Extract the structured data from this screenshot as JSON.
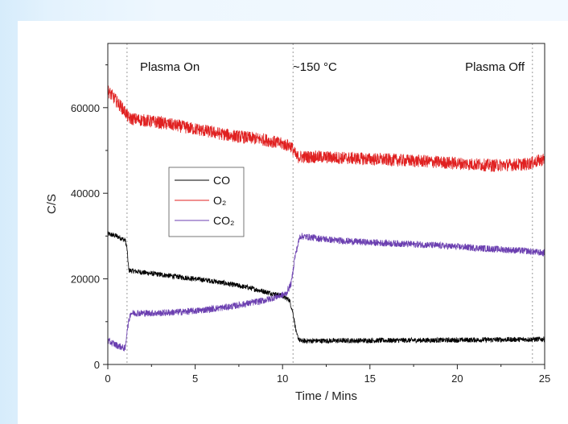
{
  "chart_data": {
    "type": "line",
    "title": "",
    "xlabel": "Time / Mins",
    "ylabel": "C/S",
    "xlim": [
      0,
      25
    ],
    "ylim": [
      0,
      75000
    ],
    "xticks": [
      0,
      5,
      10,
      15,
      20,
      25
    ],
    "yticks": [
      0,
      20000,
      40000,
      60000
    ],
    "grid": false,
    "legend_position": "center-left",
    "markers": [
      {
        "x": 1.1,
        "label": "Plasma On"
      },
      {
        "x": 10.6,
        "label": "~150 °C"
      },
      {
        "x": 24.3,
        "label": "Plasma Off"
      }
    ],
    "series": [
      {
        "name": "CO",
        "color": "#000000",
        "points": [
          [
            0,
            30500
          ],
          [
            0.5,
            30000
          ],
          [
            1.0,
            29000
          ],
          [
            1.1,
            27000
          ],
          [
            1.2,
            22000
          ],
          [
            2,
            21500
          ],
          [
            4,
            20500
          ],
          [
            6,
            19500
          ],
          [
            8,
            18000
          ],
          [
            10,
            16000
          ],
          [
            10.4,
            15000
          ],
          [
            10.6,
            12000
          ],
          [
            10.8,
            7000
          ],
          [
            11,
            5500
          ],
          [
            15,
            5600
          ],
          [
            20,
            5700
          ],
          [
            25,
            5900
          ]
        ]
      },
      {
        "name": "O₂",
        "color": "#e02020",
        "points": [
          [
            0,
            64000
          ],
          [
            0.5,
            61500
          ],
          [
            1.0,
            59000
          ],
          [
            1.2,
            57500
          ],
          [
            3,
            56500
          ],
          [
            5,
            55000
          ],
          [
            7,
            53500
          ],
          [
            9,
            52500
          ],
          [
            10.5,
            51000
          ],
          [
            10.8,
            48500
          ],
          [
            12,
            48500
          ],
          [
            15,
            48000
          ],
          [
            18,
            47500
          ],
          [
            20,
            47000
          ],
          [
            22,
            46500
          ],
          [
            24,
            46800
          ],
          [
            25,
            48000
          ]
        ]
      },
      {
        "name": "CO₂",
        "color": "#6b3fb0",
        "points": [
          [
            0,
            5500
          ],
          [
            0.5,
            4500
          ],
          [
            1.0,
            3700
          ],
          [
            1.1,
            8000
          ],
          [
            1.3,
            12000
          ],
          [
            3,
            12000
          ],
          [
            5,
            12500
          ],
          [
            7,
            13500
          ],
          [
            9,
            15000
          ],
          [
            10.2,
            16500
          ],
          [
            10.5,
            19000
          ],
          [
            10.7,
            25000
          ],
          [
            11,
            30000
          ],
          [
            13,
            29000
          ],
          [
            15,
            28500
          ],
          [
            18,
            28000
          ],
          [
            20,
            27500
          ],
          [
            22,
            27000
          ],
          [
            24,
            26500
          ],
          [
            25,
            26000
          ]
        ]
      }
    ]
  }
}
